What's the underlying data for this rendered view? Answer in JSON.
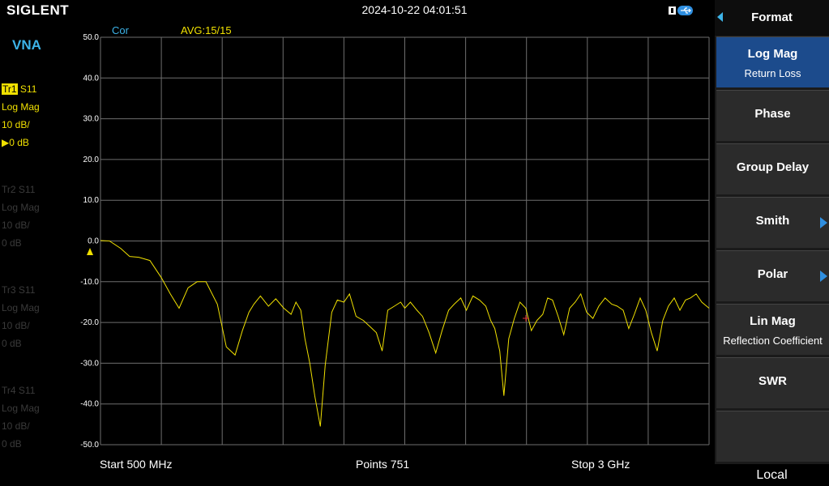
{
  "header": {
    "brand": "SIGLENT",
    "datetime": "2024-10-22 04:01:51"
  },
  "left": {
    "mode": "VNA",
    "traces": [
      {
        "tag": "Tr1",
        "param": "S11",
        "format": "Log Mag",
        "scale": "10 dB/",
        "ref": "0 dB",
        "active": true
      },
      {
        "tag": "Tr2",
        "param": "S11",
        "format": "Log Mag",
        "scale": "10 dB/",
        "ref": "0 dB",
        "active": false
      },
      {
        "tag": "Tr3",
        "param": "S11",
        "format": "Log Mag",
        "scale": "10 dB/",
        "ref": "0 dB",
        "active": false
      },
      {
        "tag": "Tr4",
        "param": "S11",
        "format": "Log Mag",
        "scale": "10 dB/",
        "ref": "0 dB",
        "active": false
      }
    ]
  },
  "plot": {
    "cor": "Cor",
    "avg": "AVG:15/15"
  },
  "footer": {
    "start": "Start  500 MHz",
    "points": "Points  751",
    "stop": "Stop  3 GHz"
  },
  "menu": {
    "title": "Format",
    "items": [
      {
        "label": "Log Mag",
        "sub": "Return Loss",
        "selected": true,
        "submenu": false
      },
      {
        "label": "Phase",
        "sub": "",
        "selected": false,
        "submenu": false
      },
      {
        "label": "Group Delay",
        "sub": "",
        "selected": false,
        "submenu": false
      },
      {
        "label": "Smith",
        "sub": "",
        "selected": false,
        "submenu": true
      },
      {
        "label": "Polar",
        "sub": "",
        "selected": false,
        "submenu": true
      },
      {
        "label": "Lin Mag",
        "sub": "Reflection Coefficient",
        "selected": false,
        "submenu": false
      },
      {
        "label": "SWR",
        "sub": "",
        "selected": false,
        "submenu": false
      },
      {
        "label": "",
        "sub": "",
        "selected": false,
        "submenu": false
      }
    ],
    "local": "Local"
  },
  "colors": {
    "trace": "#f0e000",
    "grid": "#6e6e6e",
    "accent": "#3db3e8",
    "selected": "#1c4b8c"
  },
  "chart_data": {
    "type": "line",
    "xlabel": "",
    "ylabel": "",
    "xlim": [
      500,
      3000
    ],
    "ylim": [
      -50,
      50
    ],
    "yticks": [
      "50.0",
      "40.0",
      "30.0",
      "20.0",
      "10.0",
      "0.0",
      "-10.0",
      "-20.0",
      "-30.0",
      "-40.0",
      "-50.0"
    ],
    "grid": true,
    "series": [
      {
        "x": [
          500,
          537,
          583,
          620,
          657,
          703,
          750,
          787,
          823,
          860,
          897,
          933,
          980,
          1017,
          1053,
          1083,
          1110,
          1130,
          1157,
          1190,
          1220,
          1253,
          1283,
          1303,
          1323,
          1340,
          1360,
          1380,
          1403,
          1423,
          1450,
          1473,
          1500,
          1523,
          1550,
          1580,
          1607,
          1633,
          1657,
          1680,
          1707,
          1733,
          1750,
          1773,
          1800,
          1823,
          1850,
          1877,
          1903,
          1930,
          1953,
          1980,
          2003,
          2030,
          2057,
          2083,
          2103,
          2120,
          2140,
          2157,
          2177,
          2200,
          2223,
          2247,
          2270,
          2293,
          2317,
          2337,
          2357,
          2380,
          2403,
          2427,
          2450,
          2473,
          2497,
          2523,
          2547,
          2573,
          2600,
          2623,
          2647,
          2670,
          2693,
          2717,
          2740,
          2763,
          2787,
          2810,
          2833,
          2857,
          2880,
          2903,
          2923,
          2947,
          2970,
          3000
        ],
        "y": [
          0.1,
          0.0,
          -1.8,
          -3.8,
          -4.0,
          -4.8,
          -9.0,
          -13.0,
          -16.5,
          -11.5,
          -10.0,
          -10.0,
          -15.5,
          -26.0,
          -28.0,
          -22.0,
          -17.5,
          -15.5,
          -13.5,
          -16.0,
          -14.2,
          -16.5,
          -18.0,
          -15.0,
          -17.0,
          -24.0,
          -30.0,
          -38.0,
          -45.5,
          -30.5,
          -17.5,
          -14.5,
          -15.0,
          -13.0,
          -18.5,
          -19.5,
          -21.0,
          -22.5,
          -27.0,
          -17.0,
          -16.0,
          -15.0,
          -16.5,
          -15.0,
          -17.0,
          -18.5,
          -22.5,
          -27.5,
          -22.0,
          -17.0,
          -15.5,
          -14.0,
          -17.0,
          -13.5,
          -14.5,
          -16.0,
          -19.5,
          -21.5,
          -27.0,
          -38.0,
          -24.0,
          -19.0,
          -15.0,
          -16.5,
          -22.0,
          -19.5,
          -18.0,
          -14.0,
          -14.5,
          -18.5,
          -23.0,
          -16.5,
          -15.0,
          -13.0,
          -17.5,
          -19.0,
          -16.0,
          -14.0,
          -15.5,
          -16.0,
          -17.0,
          -21.5,
          -18.0,
          -14.0,
          -17.0,
          -22.5,
          -27.0,
          -19.5,
          -16.0,
          -14.0,
          -17.0,
          -14.5,
          -14.0,
          -13.0,
          -15.0,
          -16.5
        ]
      }
    ]
  }
}
